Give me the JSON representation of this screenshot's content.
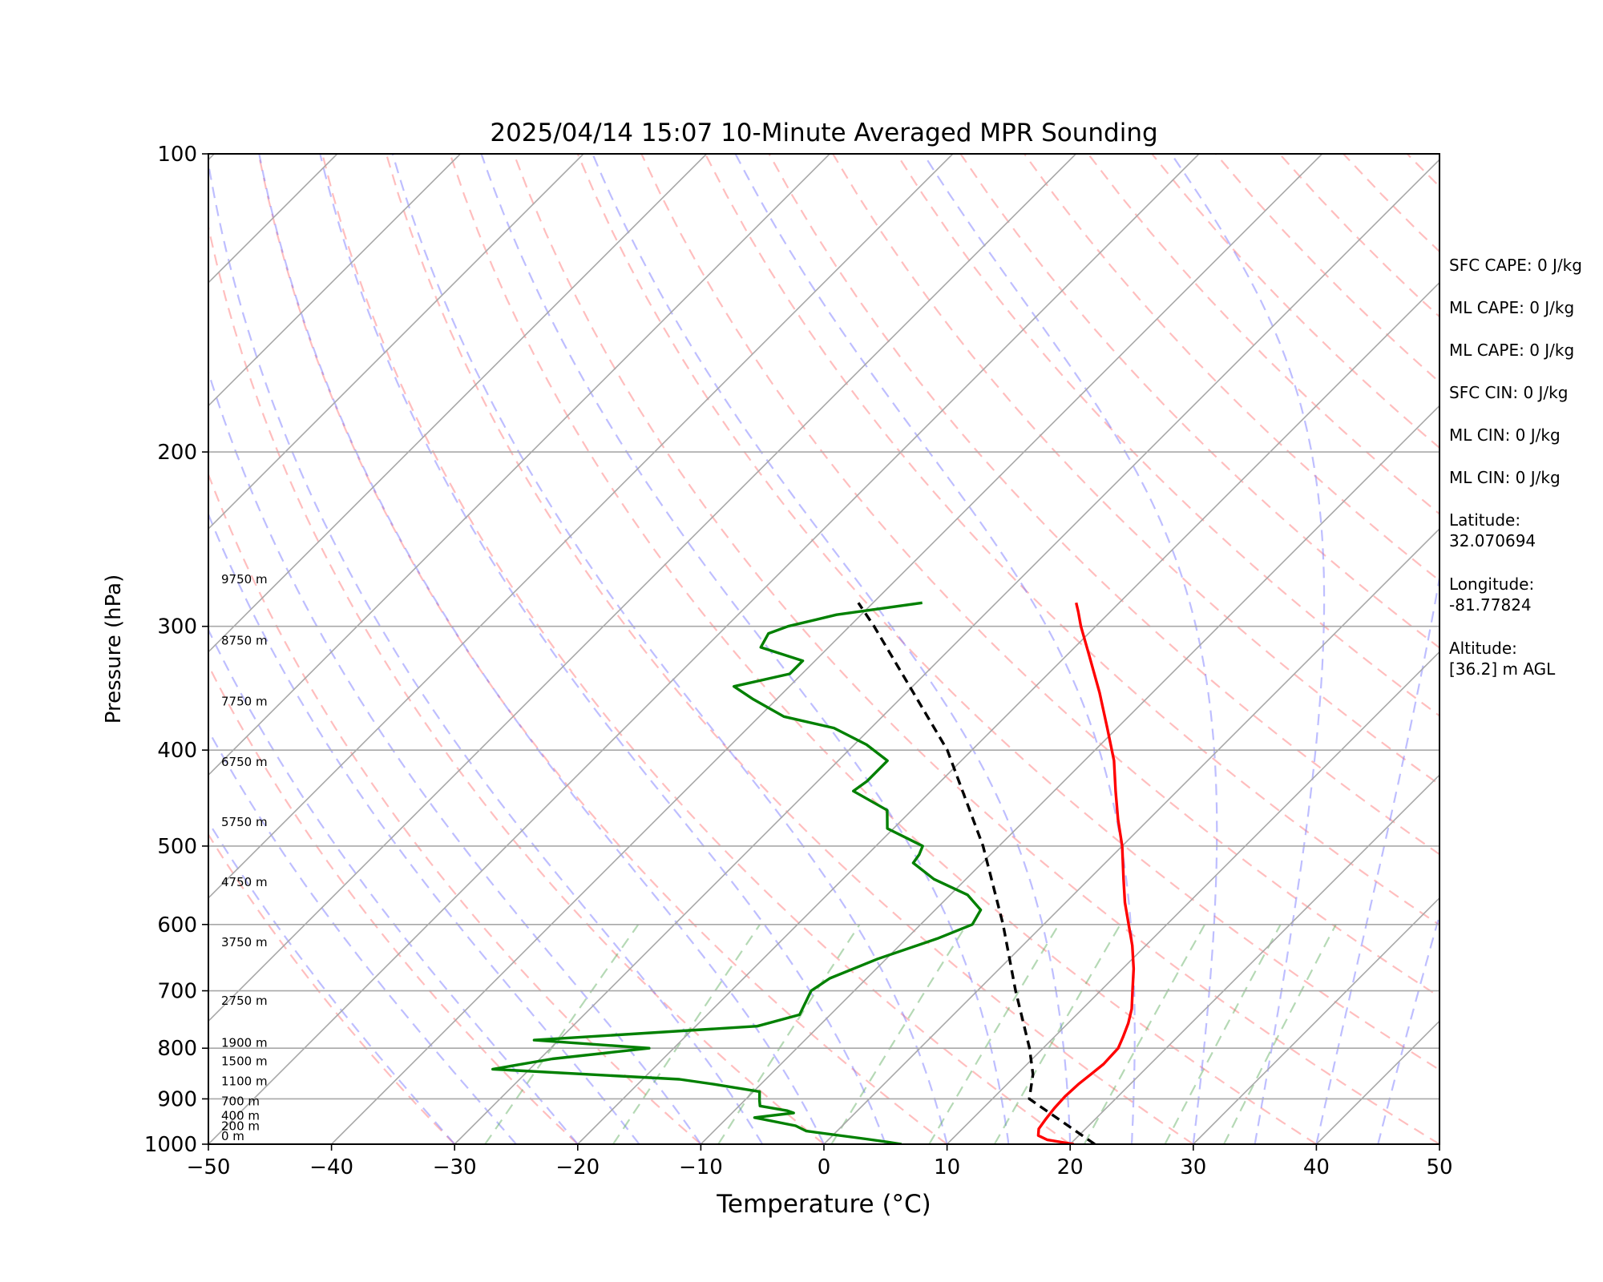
{
  "chart_data": {
    "type": "line",
    "title": "2025/04/14 15:07 10-Minute Averaged MPR Sounding",
    "xlabel": "Temperature (°C)",
    "ylabel": "Pressure (hPa)",
    "xlim": [
      -50,
      50
    ],
    "ylim": [
      1000,
      100
    ],
    "y_scale": "log",
    "x_skew": "skew-T",
    "grid": true,
    "x_ticks": [
      "−50",
      "−40",
      "−30",
      "−20",
      "−10",
      "0",
      "10",
      "20",
      "30",
      "40",
      "50"
    ],
    "y_ticks": [
      "100",
      "200",
      "300",
      "400",
      "500",
      "600",
      "700",
      "800",
      "900",
      "1000"
    ],
    "series": [
      {
        "color": "#ff0000",
        "style": "solid",
        "points": [
          {
            "p": 1000,
            "t": 20.3
          },
          {
            "p": 990,
            "t": 17.8
          },
          {
            "p": 980,
            "t": 16.7
          },
          {
            "p": 965,
            "t": 16.2
          },
          {
            "p": 945,
            "t": 16.0
          },
          {
            "p": 920,
            "t": 15.8
          },
          {
            "p": 895,
            "t": 15.7
          },
          {
            "p": 870,
            "t": 15.8
          },
          {
            "p": 850,
            "t": 16.0
          },
          {
            "p": 830,
            "t": 16.2
          },
          {
            "p": 800,
            "t": 16.1
          },
          {
            "p": 780,
            "t": 15.6
          },
          {
            "p": 755,
            "t": 14.9
          },
          {
            "p": 730,
            "t": 14.0
          },
          {
            "p": 700,
            "t": 12.6
          },
          {
            "p": 665,
            "t": 10.9
          },
          {
            "p": 630,
            "t": 8.9
          },
          {
            "p": 600,
            "t": 6.9
          },
          {
            "p": 570,
            "t": 4.8
          },
          {
            "p": 540,
            "t": 2.8
          },
          {
            "p": 500,
            "t": 0.0
          },
          {
            "p": 470,
            "t": -2.5
          },
          {
            "p": 440,
            "t": -5.0
          },
          {
            "p": 410,
            "t": -7.6
          },
          {
            "p": 380,
            "t": -10.8
          },
          {
            "p": 350,
            "t": -14.3
          },
          {
            "p": 320,
            "t": -18.3
          },
          {
            "p": 300,
            "t": -21.2
          },
          {
            "p": 290,
            "t": -22.6
          },
          {
            "p": 284,
            "t": -23.5
          }
        ]
      },
      {
        "color": "#008000",
        "style": "solid",
        "points": [
          {
            "p": 1000,
            "t": 6.3
          },
          {
            "p": 995,
            "t": 5.0
          },
          {
            "p": 988,
            "t": 3.0
          },
          {
            "p": 970,
            "t": -2.5
          },
          {
            "p": 958,
            "t": -3.8
          },
          {
            "p": 940,
            "t": -7.8
          },
          {
            "p": 930,
            "t": -5.0
          },
          {
            "p": 925,
            "t": -5.7
          },
          {
            "p": 915,
            "t": -8.3
          },
          {
            "p": 903,
            "t": -8.8
          },
          {
            "p": 885,
            "t": -9.5
          },
          {
            "p": 870,
            "t": -13.8
          },
          {
            "p": 860,
            "t": -17.0
          },
          {
            "p": 840,
            "t": -33.0
          },
          {
            "p": 820,
            "t": -29.0
          },
          {
            "p": 800,
            "t": -22.0
          },
          {
            "p": 785,
            "t": -32.0
          },
          {
            "p": 760,
            "t": -15.0
          },
          {
            "p": 740,
            "t": -12.5
          },
          {
            "p": 720,
            "t": -13.0
          },
          {
            "p": 700,
            "t": -13.5
          },
          {
            "p": 680,
            "t": -13.0
          },
          {
            "p": 650,
            "t": -10.7
          },
          {
            "p": 620,
            "t": -7.5
          },
          {
            "p": 600,
            "t": -5.8
          },
          {
            "p": 580,
            "t": -6.3
          },
          {
            "p": 560,
            "t": -8.6
          },
          {
            "p": 540,
            "t": -12.6
          },
          {
            "p": 520,
            "t": -15.6
          },
          {
            "p": 510,
            "t": -15.8
          },
          {
            "p": 500,
            "t": -16.2
          },
          {
            "p": 480,
            "t": -20.5
          },
          {
            "p": 460,
            "t": -22.0
          },
          {
            "p": 440,
            "t": -26.3
          },
          {
            "p": 430,
            "t": -26.0
          },
          {
            "p": 410,
            "t": -26.0
          },
          {
            "p": 395,
            "t": -29.0
          },
          {
            "p": 380,
            "t": -33.0
          },
          {
            "p": 370,
            "t": -38.0
          },
          {
            "p": 355,
            "t": -42.0
          },
          {
            "p": 345,
            "t": -44.5
          },
          {
            "p": 335,
            "t": -41.0
          },
          {
            "p": 325,
            "t": -41.0
          },
          {
            "p": 315,
            "t": -45.5
          },
          {
            "p": 305,
            "t": -46.0
          },
          {
            "p": 300,
            "t": -45.0
          },
          {
            "p": 292,
            "t": -42.0
          },
          {
            "p": 284,
            "t": -36.0
          }
        ]
      },
      {
        "color": "#000000",
        "style": "dashed",
        "points": [
          {
            "p": 1000,
            "t": 22.0
          },
          {
            "p": 900,
            "t": 13.0
          },
          {
            "p": 850,
            "t": 11.3
          },
          {
            "p": 800,
            "t": 8.9
          },
          {
            "p": 700,
            "t": 3.1
          },
          {
            "p": 600,
            "t": -3.3
          },
          {
            "p": 500,
            "t": -11.3
          },
          {
            "p": 400,
            "t": -22.0
          },
          {
            "p": 300,
            "t": -38.0
          },
          {
            "p": 284,
            "t": -41.2
          }
        ]
      }
    ],
    "height_labels": [
      {
        "p": 1000,
        "label": "0 m"
      },
      {
        "p": 977,
        "label": "200 m"
      },
      {
        "p": 954,
        "label": "400 m"
      },
      {
        "p": 922,
        "label": "700 m"
      },
      {
        "p": 880,
        "label": "1100 m"
      },
      {
        "p": 840,
        "label": "1500 m"
      },
      {
        "p": 805,
        "label": "1900 m"
      },
      {
        "p": 730,
        "label": "2750 m"
      },
      {
        "p": 637,
        "label": "3750 m"
      },
      {
        "p": 554,
        "label": "4750 m"
      },
      {
        "p": 482,
        "label": "5750 m"
      },
      {
        "p": 419,
        "label": "6750 m"
      },
      {
        "p": 364,
        "label": "7750 m"
      },
      {
        "p": 316,
        "label": "8750 m"
      },
      {
        "p": 274,
        "label": "9750 m"
      }
    ]
  },
  "info_panel": {
    "stats": [
      "SFC CAPE: 0 J/kg",
      "ML CAPE: 0 J/kg",
      "ML CAPE: 0 J/kg",
      "SFC CIN: 0 J/kg",
      "ML CIN: 0 J/kg",
      "ML CIN: 0 J/kg"
    ],
    "latitude_label": "Latitude:",
    "latitude_value": "32.070694",
    "longitude_label": "Longitude:",
    "longitude_value": "-81.77824",
    "altitude_label": "Altitude:",
    "altitude_value": "[36.2] m AGL"
  }
}
